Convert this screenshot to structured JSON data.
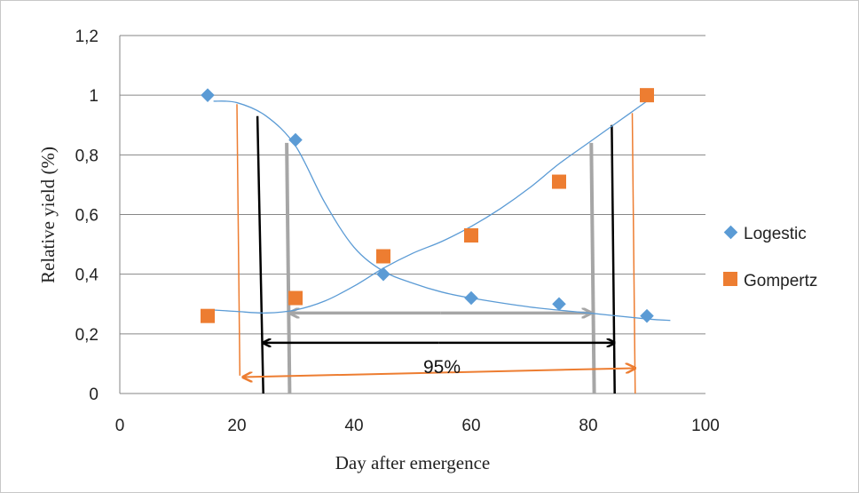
{
  "chart_data": {
    "type": "scatter",
    "xlabel": "Day after emergence",
    "ylabel": "Relative yield (%)",
    "xlim": [
      0,
      100
    ],
    "ylim": [
      0,
      1.2
    ],
    "x_ticks": [
      "0",
      "20",
      "40",
      "60",
      "80",
      "100"
    ],
    "y_ticks": [
      "0",
      "0,2",
      "0,4",
      "0,6",
      "0,8",
      "1",
      "1,2"
    ],
    "grid": "horizontal",
    "legend_position": "right",
    "series": [
      {
        "name": "Logestic",
        "marker": "diamond",
        "color": "#5b9bd5",
        "x": [
          15,
          30,
          45,
          60,
          75,
          90
        ],
        "y": [
          1.0,
          0.85,
          0.4,
          0.32,
          0.3,
          0.26
        ]
      },
      {
        "name": "Gompertz",
        "marker": "square",
        "color": "#ed7d31",
        "x": [
          15,
          30,
          45,
          60,
          75,
          90
        ],
        "y": [
          0.26,
          0.32,
          0.46,
          0.53,
          0.71,
          1.0
        ]
      }
    ],
    "trendlines": [
      {
        "for": "Logestic",
        "color": "#5b9bd5",
        "points": [
          [
            16,
            0.98
          ],
          [
            20,
            0.975
          ],
          [
            25,
            0.93
          ],
          [
            30,
            0.83
          ],
          [
            35,
            0.64
          ],
          [
            40,
            0.49
          ],
          [
            45,
            0.41
          ],
          [
            50,
            0.37
          ],
          [
            55,
            0.34
          ],
          [
            60,
            0.32
          ],
          [
            70,
            0.29
          ],
          [
            80,
            0.27
          ],
          [
            90,
            0.25
          ],
          [
            94,
            0.245
          ]
        ]
      },
      {
        "for": "Gompertz",
        "color": "#5b9bd5",
        "points": [
          [
            16,
            0.28
          ],
          [
            20,
            0.275
          ],
          [
            25,
            0.27
          ],
          [
            30,
            0.28
          ],
          [
            35,
            0.31
          ],
          [
            40,
            0.36
          ],
          [
            45,
            0.42
          ],
          [
            50,
            0.47
          ],
          [
            55,
            0.51
          ],
          [
            60,
            0.56
          ],
          [
            65,
            0.62
          ],
          [
            70,
            0.69
          ],
          [
            75,
            0.77
          ],
          [
            80,
            0.84
          ],
          [
            85,
            0.91
          ],
          [
            90,
            0.98
          ]
        ]
      }
    ],
    "annotations": {
      "label": "95%",
      "black_verticals": [
        {
          "x": [
            24.5,
            23.5
          ],
          "y": [
            0,
            0.93
          ]
        },
        {
          "x": [
            84.5,
            84
          ],
          "y": [
            0,
            0.9
          ]
        }
      ],
      "grey_verticals": [
        {
          "x": [
            29,
            28.5
          ],
          "y": [
            0,
            0.84
          ]
        },
        {
          "x": [
            81,
            80.5
          ],
          "y": [
            0,
            0.84
          ]
        }
      ],
      "orange_verticals": [
        {
          "x": [
            20.5,
            20
          ],
          "y": [
            0.06,
            0.97
          ]
        },
        {
          "x": [
            88,
            87.5
          ],
          "y": [
            0,
            0.94
          ]
        }
      ],
      "black_arrow": {
        "x": [
          24.5,
          84.5
        ],
        "y": [
          0.17,
          0.17
        ]
      },
      "grey_arrow": {
        "x": [
          29,
          80.5
        ],
        "y": [
          0.27,
          0.27
        ]
      },
      "orange_arrow": {
        "x": [
          21,
          88
        ],
        "y": [
          0.055,
          0.085
        ]
      }
    }
  }
}
